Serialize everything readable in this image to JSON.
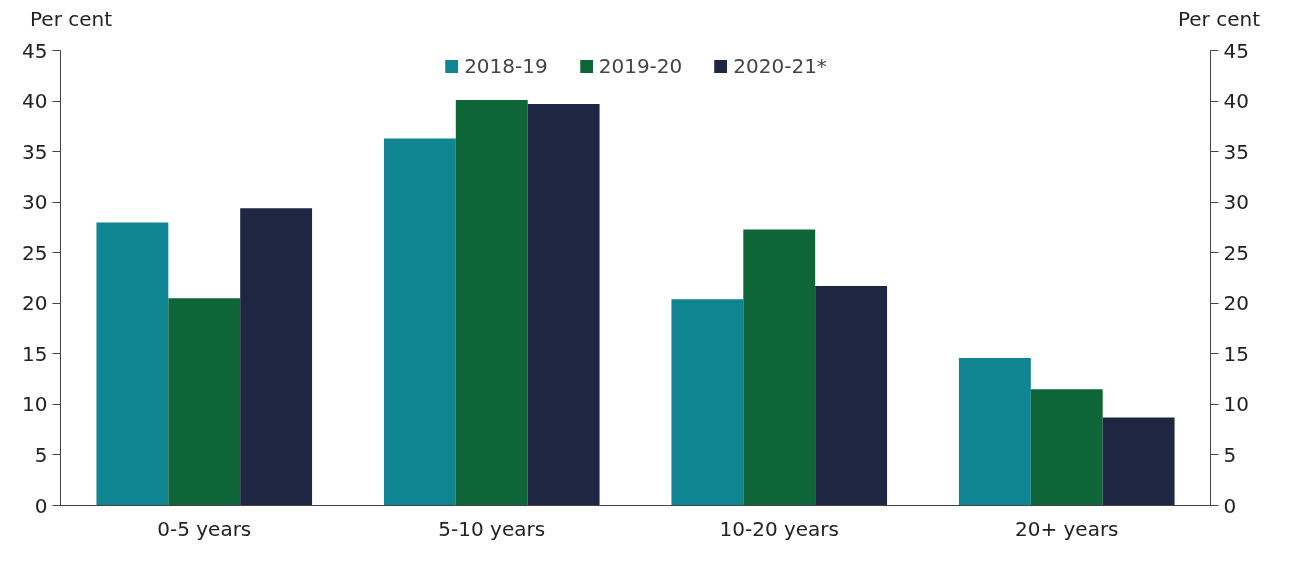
{
  "chart_data": {
    "type": "bar",
    "ylabel": "Per cent",
    "y2label": "Per cent",
    "categories": [
      "0-5 years",
      "5-10 years",
      "10-20 years",
      "20+ years"
    ],
    "series": [
      {
        "name": "2018-19",
        "color": "#0e8590",
        "values": [
          28.0,
          36.3,
          20.4,
          14.6
        ]
      },
      {
        "name": "2019-20",
        "color": "#0e6638",
        "values": [
          20.5,
          40.1,
          27.3,
          11.5
        ]
      },
      {
        "name": "2020-21*",
        "color": "#1e2642",
        "values": [
          29.4,
          39.7,
          21.7,
          8.7
        ]
      }
    ],
    "ylim": [
      0,
      45
    ],
    "yticks": [
      0,
      5,
      10,
      15,
      20,
      25,
      30,
      35,
      40,
      45
    ],
    "y2lim": [
      0,
      45
    ],
    "y2ticks": [
      0,
      5,
      10,
      15,
      20,
      25,
      30,
      35,
      40,
      45
    ],
    "grid": false,
    "legend": "top"
  }
}
